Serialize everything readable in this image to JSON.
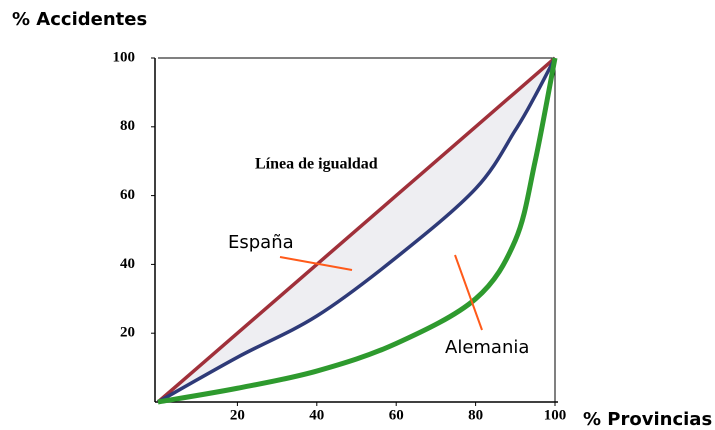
{
  "chart_data": {
    "type": "line",
    "y_label": "% Accidentes",
    "x_label": "% Provincias",
    "x": [
      0,
      20,
      40,
      60,
      80,
      90,
      95,
      100
    ],
    "series": [
      {
        "name": "Línea de igualdad",
        "color": "#a0303a",
        "values": [
          0,
          20,
          40,
          60,
          80,
          90,
          95,
          100
        ]
      },
      {
        "name": "España",
        "color": "#2e3a78",
        "values": [
          0,
          13,
          25,
          42,
          62,
          79,
          89,
          100
        ]
      },
      {
        "name": "Alemania",
        "color": "#2e9a2e",
        "values": [
          0,
          4,
          9,
          17,
          30,
          47,
          70,
          100
        ]
      }
    ],
    "xlim": [
      0,
      100
    ],
    "ylim": [
      0,
      100
    ],
    "xticks": [
      20,
      40,
      60,
      80,
      100
    ],
    "yticks": [
      20,
      40,
      60,
      80,
      100
    ]
  }
}
